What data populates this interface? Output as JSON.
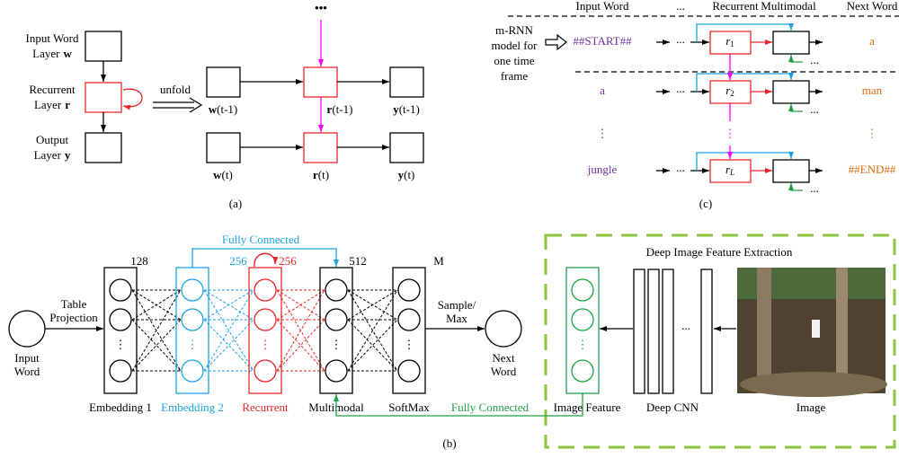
{
  "panel_a": {
    "dots": "•••",
    "layers": [
      {
        "name": "Input Word",
        "prefix": "Layer",
        "symbol": "w"
      },
      {
        "name": "Recurrent",
        "prefix": "Layer",
        "symbol": "r"
      },
      {
        "name": "Output",
        "prefix": "Layer",
        "symbol": "y"
      }
    ],
    "unfold": "unfold",
    "unfolded": [
      [
        {
          "symbol": "w",
          "time": "(t-1)"
        },
        {
          "symbol": "r",
          "time": "(t-1)"
        },
        {
          "symbol": "y",
          "time": "(t-1)"
        }
      ],
      [
        {
          "symbol": "w",
          "time": "(t)"
        },
        {
          "symbol": "r",
          "time": "(t)"
        },
        {
          "symbol": "y",
          "time": "(t)"
        }
      ]
    ],
    "label": "(a)"
  },
  "panel_c": {
    "headers": [
      "Input Word",
      "...",
      "Recurrent",
      "Multimodal",
      "Next Word"
    ],
    "side_note": [
      "m-RNN",
      "model for",
      "one time",
      "frame"
    ],
    "rows": [
      {
        "input": "##START##",
        "recurrent": "r",
        "subscript": "1",
        "next": "a"
      },
      {
        "input": "a",
        "recurrent": "r",
        "subscript": "2",
        "next": "man"
      },
      {
        "input": "jungle",
        "recurrent": "r",
        "subscript": "L",
        "next": "##END##"
      }
    ],
    "ellipsis": "...",
    "vdots": "⋮",
    "label": "(c)"
  },
  "panel_b": {
    "fully_connected_top": "Fully Connected",
    "layers": [
      {
        "name": "Embedding 1",
        "size": "128"
      },
      {
        "name": "Embedding 2",
        "size": "256"
      },
      {
        "name": "Recurrent",
        "size": "256"
      },
      {
        "name": "Multimodal",
        "size": "512"
      },
      {
        "name": "SoftMax",
        "size": "M"
      }
    ],
    "input": [
      "Input",
      "Word"
    ],
    "table_projection": [
      "Table",
      "Projection"
    ],
    "sample": [
      "Sample/",
      "Max"
    ],
    "output": [
      "Next",
      "Word"
    ],
    "fully_connected_bottom": "Fully Connected",
    "extraction_title": "Deep Image Feature Extraction",
    "image_feature": "Image Feature",
    "deep_cnn": "Deep CNN",
    "cnn_ellipsis": "...",
    "image": "Image",
    "vdots": "⋮",
    "label": "(b)"
  }
}
